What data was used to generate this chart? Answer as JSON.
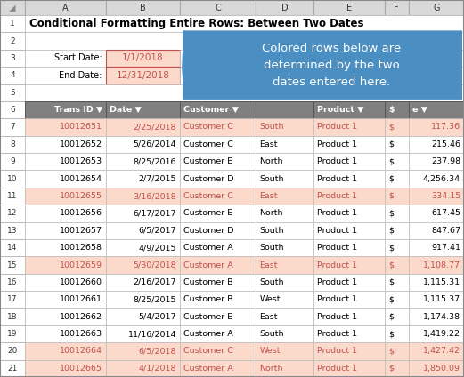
{
  "title": "Conditional Formatting Entire Rows: Between Two Dates",
  "start_date_label": "Start Date:",
  "end_date_label": "End Date:",
  "start_date": "1/1/2018",
  "end_date": "12/31/2018",
  "callout_text": "Colored rows below are\ndetermined by the two\ndates entered here.",
  "rows": [
    {
      "id": "10012651",
      "date": "2/25/2018",
      "customer": "Customer C",
      "region": "South",
      "product": "Product 1",
      "amount": "117.36",
      "highlight": true
    },
    {
      "id": "10012652",
      "date": "5/26/2014",
      "customer": "Customer C",
      "region": "East",
      "product": "Product 1",
      "amount": "215.46",
      "highlight": false
    },
    {
      "id": "10012653",
      "date": "8/25/2016",
      "customer": "Customer E",
      "region": "North",
      "product": "Product 1",
      "amount": "237.98",
      "highlight": false
    },
    {
      "id": "10012654",
      "date": "2/7/2015",
      "customer": "Customer D",
      "region": "South",
      "product": "Product 1",
      "amount": "4,256.34",
      "highlight": false
    },
    {
      "id": "10012655",
      "date": "3/16/2018",
      "customer": "Customer C",
      "region": "East",
      "product": "Product 1",
      "amount": "334.15",
      "highlight": true
    },
    {
      "id": "10012656",
      "date": "6/17/2017",
      "customer": "Customer E",
      "region": "North",
      "product": "Product 1",
      "amount": "617.45",
      "highlight": false
    },
    {
      "id": "10012657",
      "date": "6/5/2017",
      "customer": "Customer D",
      "region": "South",
      "product": "Product 1",
      "amount": "847.67",
      "highlight": false
    },
    {
      "id": "10012658",
      "date": "4/9/2015",
      "customer": "Customer A",
      "region": "South",
      "product": "Product 1",
      "amount": "917.41",
      "highlight": false
    },
    {
      "id": "10012659",
      "date": "5/30/2018",
      "customer": "Customer A",
      "region": "East",
      "product": "Product 1",
      "amount": "1,108.77",
      "highlight": true
    },
    {
      "id": "10012660",
      "date": "2/16/2017",
      "customer": "Customer B",
      "region": "South",
      "product": "Product 1",
      "amount": "1,115.31",
      "highlight": false
    },
    {
      "id": "10012661",
      "date": "8/25/2015",
      "customer": "Customer B",
      "region": "West",
      "product": "Product 1",
      "amount": "1,115.37",
      "highlight": false
    },
    {
      "id": "10012662",
      "date": "5/4/2017",
      "customer": "Customer E",
      "region": "East",
      "product": "Product 1",
      "amount": "1,174.38",
      "highlight": false
    },
    {
      "id": "10012663",
      "date": "11/16/2014",
      "customer": "Customer A",
      "region": "South",
      "product": "Product 1",
      "amount": "1,419.22",
      "highlight": false
    },
    {
      "id": "10012664",
      "date": "6/5/2018",
      "customer": "Customer C",
      "region": "West",
      "product": "Product 1",
      "amount": "1,427.42",
      "highlight": true
    },
    {
      "id": "10012665",
      "date": "4/1/2018",
      "customer": "Customer A",
      "region": "North",
      "product": "Product 1",
      "amount": "1,850.09",
      "highlight": true
    }
  ],
  "highlight_bg": "#FCDACB",
  "highlight_fg": "#C0504D",
  "normal_bg": "#FFFFFF",
  "normal_fg": "#000000",
  "header_bg": "#808080",
  "header_fg": "#FFFFFF",
  "date_cell_bg": "#FCDACB",
  "date_cell_fg": "#C0504D",
  "callout_bg": "#4A8EC2",
  "callout_fg": "#FFFFFF",
  "border_color": "#BBBBBB",
  "col_hdr_bg": "#D9D9D9",
  "col_hdr_fg": "#333333",
  "title_color": "#000000"
}
